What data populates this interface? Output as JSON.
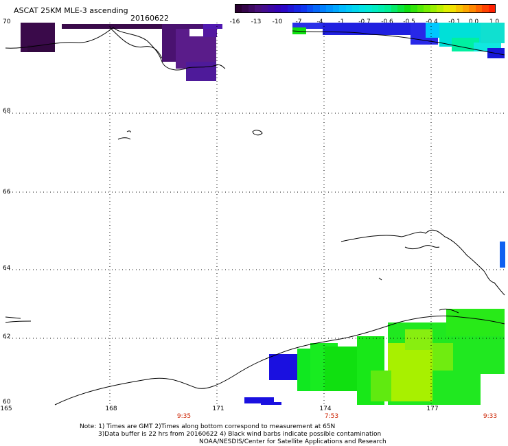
{
  "header": {
    "title": "ASCAT 25KM MLE-3 ascending",
    "date": "20160622"
  },
  "colorbar": {
    "labels": [
      "-16",
      "-13",
      "-10",
      "-7",
      "-4",
      "-1",
      "-0.7",
      "-0.6",
      "-0.5",
      "-0.4",
      "-0.1",
      "0.0",
      "1.0"
    ],
    "colors": [
      "#2a0030",
      "#4a1080",
      "#3000c0",
      "#1030f0",
      "#0080ff",
      "#00c0ff",
      "#00e8e0",
      "#00f0a0",
      "#10e010",
      "#80f000",
      "#f0f000",
      "#ff9000",
      "#ff2000"
    ]
  },
  "map": {
    "lat_labels": [
      "70",
      "68",
      "66",
      "64",
      "62",
      "60"
    ],
    "lon_labels": [
      "165",
      "168",
      "171",
      "174",
      "177"
    ],
    "time_labels": [
      "9:35",
      "7:53",
      "9:33"
    ],
    "colors": {
      "deep_purple": "#3a0a4a",
      "purple": "#5a1c8a",
      "violet": "#5018b0",
      "blue": "#1a10e0",
      "cyan": "#00d8e0",
      "green": "#10e820",
      "yellow_green": "#a8f000",
      "time_red": "#cc2200"
    }
  },
  "notes": {
    "line1": "Note: 1) Times are GMT 2)Times along bottom correspond to measurement at 65N",
    "line2": "3)Data buffer is 22 hrs from 20160622 4) Black wind barbs indicate possible contamination",
    "line3": "NOAA/NESDIS/Center for Satellite Applications and Research"
  }
}
